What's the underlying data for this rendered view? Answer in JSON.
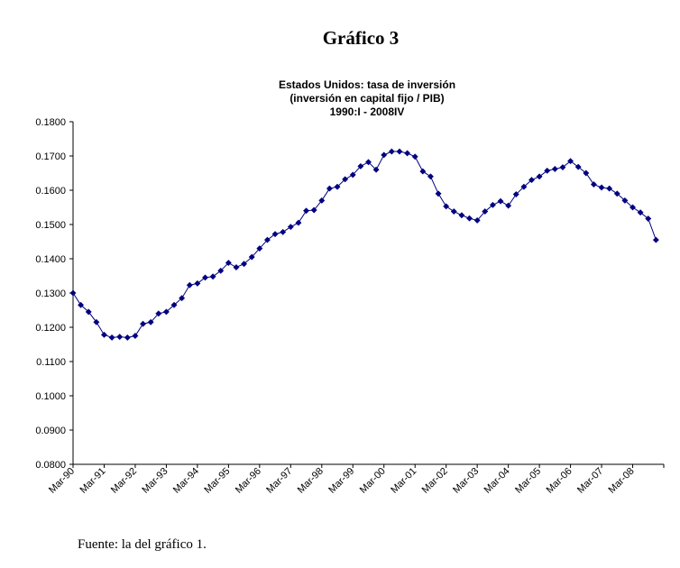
{
  "page": {
    "heading": "Gráfico 3",
    "source_note": "Fuente: la del gráfico 1."
  },
  "chart_data": {
    "type": "line",
    "title_lines": [
      "Estados Unidos: tasa de inversión",
      "(inversión en capital fijo / PIB)",
      "1990:I - 2008IV"
    ],
    "xlabel": "",
    "ylabel": "",
    "ylim": [
      0.08,
      0.18
    ],
    "yticks": [
      "0.0800",
      "0.0900",
      "0.1000",
      "0.1100",
      "0.1200",
      "0.1300",
      "0.1400",
      "0.1500",
      "0.1600",
      "0.1700",
      "0.1800"
    ],
    "xticks": [
      "Mar-90",
      "Mar-91",
      "Mar-92",
      "Mar-93",
      "Mar-94",
      "Mar-95",
      "Mar-96",
      "Mar-97",
      "Mar-98",
      "Mar-99",
      "Mar-00",
      "Mar-01",
      "Mar-02",
      "Mar-03",
      "Mar-04",
      "Mar-05",
      "Mar-06",
      "Mar-07",
      "Mar-08"
    ],
    "grid": false,
    "legend": "none",
    "marker": "diamond",
    "color": "#000080",
    "series": [
      {
        "values": [
          0.13,
          0.1265,
          0.1245,
          0.1215,
          0.1178,
          0.117,
          0.1172,
          0.117,
          0.1175,
          0.121,
          0.1215,
          0.124,
          0.1245,
          0.1265,
          0.1285,
          0.1323,
          0.1328,
          0.1345,
          0.1348,
          0.1365,
          0.1388,
          0.1375,
          0.1385,
          0.1405,
          0.143,
          0.1455,
          0.1472,
          0.1478,
          0.1493,
          0.1505,
          0.154,
          0.1542,
          0.157,
          0.1605,
          0.161,
          0.1632,
          0.1645,
          0.167,
          0.1682,
          0.166,
          0.1703,
          0.1713,
          0.1713,
          0.1708,
          0.1698,
          0.1655,
          0.164,
          0.159,
          0.1553,
          0.1538,
          0.1527,
          0.1518,
          0.1512,
          0.1538,
          0.1557,
          0.1568,
          0.1555,
          0.1588,
          0.161,
          0.163,
          0.164,
          0.1657,
          0.1662,
          0.1667,
          0.1685,
          0.1668,
          0.165,
          0.1617,
          0.1608,
          0.1605,
          0.159,
          0.157,
          0.155,
          0.1535,
          0.1517,
          0.1455
        ]
      }
    ]
  }
}
